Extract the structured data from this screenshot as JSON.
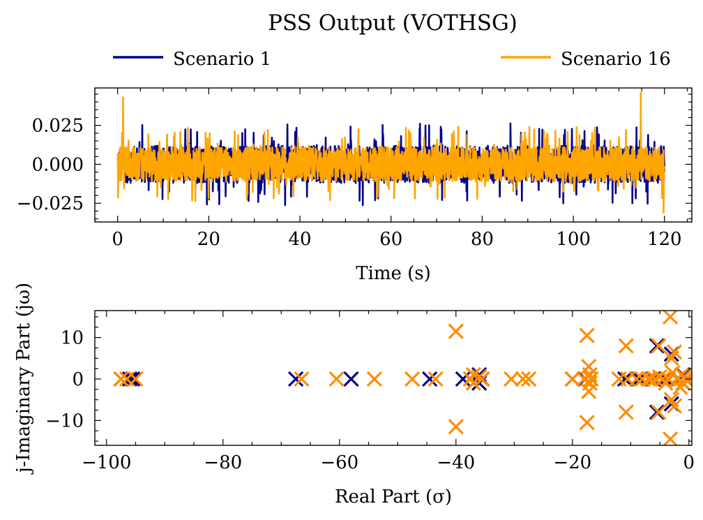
{
  "figure": {
    "title": "PSS Output (VOTHSG)",
    "legend": [
      {
        "label": "Scenario 1",
        "color": "#00008b"
      },
      {
        "label": "Scenario 16",
        "color": "#ffa500"
      }
    ]
  },
  "chart_data": [
    {
      "type": "line",
      "xlabel": "Time (s)",
      "ylabel": "",
      "xlim": [
        -5,
        126
      ],
      "ylim": [
        -0.037,
        0.049
      ],
      "xticks": [
        0,
        20,
        40,
        60,
        80,
        100,
        120
      ],
      "xtick_labels": [
        "0",
        "20",
        "40",
        "60",
        "80",
        "100",
        "120"
      ],
      "yticks": [
        -0.025,
        0.0,
        0.025
      ],
      "ytick_labels": [
        "−0.025",
        "0.000",
        "0.025"
      ],
      "x_range": [
        0,
        120
      ],
      "series": [
        {
          "name": "Scenario 1",
          "color": "#00008b",
          "typical_amplitude": 0.012,
          "peak": 0.029,
          "trough": -0.032
        },
        {
          "name": "Scenario 16",
          "color": "#ffa500",
          "typical_amplitude": 0.011,
          "peak": 0.046,
          "trough": -0.031,
          "spikes": [
            {
              "x": 1.2,
              "y": 0.043
            },
            {
              "x": 114.8,
              "y": 0.046
            },
            {
              "x": 119.8,
              "y": -0.031
            }
          ]
        }
      ],
      "grid": false
    },
    {
      "type": "scatter",
      "marker": "x",
      "xlabel": "Real Part (σ)",
      "ylabel": "j-Imaginary Part (jω)",
      "xlim": [
        -102,
        0.5
      ],
      "ylim": [
        -16,
        16.5
      ],
      "xticks": [
        -100,
        -80,
        -60,
        -40,
        -20,
        0
      ],
      "xtick_labels": [
        "−100",
        "−80",
        "−60",
        "−40",
        "−20",
        "0"
      ],
      "yticks": [
        -10,
        0,
        10
      ],
      "ytick_labels": [
        "−10",
        "0",
        "10"
      ],
      "series": [
        {
          "name": "Scenario 1",
          "color": "#00008b",
          "points": [
            [
              -97.5,
              0
            ],
            [
              -96,
              0
            ],
            [
              -95.5,
              0
            ],
            [
              -67.5,
              0
            ],
            [
              -58,
              0
            ],
            [
              -44.5,
              0
            ],
            [
              -38.8,
              0
            ],
            [
              -36,
              1
            ],
            [
              -36,
              -1
            ],
            [
              -35.5,
              0
            ],
            [
              -20,
              0
            ],
            [
              -17.8,
              0
            ],
            [
              -11,
              0
            ],
            [
              -8.5,
              0
            ],
            [
              -6,
              0
            ],
            [
              -5.5,
              8
            ],
            [
              -5.5,
              -8
            ],
            [
              -4,
              0
            ],
            [
              -3,
              6
            ],
            [
              -3,
              -6
            ],
            [
              -2,
              0
            ],
            [
              -1,
              1
            ],
            [
              -1,
              -1
            ],
            [
              -0.5,
              0
            ]
          ]
        },
        {
          "name": "Scenario 16",
          "color": "#ff8c00",
          "points": [
            [
              -97.5,
              0
            ],
            [
              -96.5,
              0
            ],
            [
              -95,
              0
            ],
            [
              -66.5,
              0
            ],
            [
              -60.5,
              0
            ],
            [
              -54,
              0
            ],
            [
              -47.5,
              0
            ],
            [
              -43.5,
              0
            ],
            [
              -40,
              11.5
            ],
            [
              -40,
              -11.5
            ],
            [
              -37.5,
              0
            ],
            [
              -37,
              1
            ],
            [
              -37,
              -1
            ],
            [
              -36,
              0.5
            ],
            [
              -35.5,
              0
            ],
            [
              -30.5,
              0
            ],
            [
              -28.5,
              0
            ],
            [
              -27.5,
              0
            ],
            [
              -20,
              0
            ],
            [
              -18,
              0
            ],
            [
              -17.5,
              10.5
            ],
            [
              -17.5,
              -10.5
            ],
            [
              -17.2,
              3
            ],
            [
              -17.2,
              -3
            ],
            [
              -17,
              1
            ],
            [
              -17,
              -1
            ],
            [
              -16.8,
              0
            ],
            [
              -12,
              0
            ],
            [
              -10.8,
              8
            ],
            [
              -10.8,
              -8
            ],
            [
              -10.5,
              0
            ],
            [
              -9,
              0
            ],
            [
              -8,
              0
            ],
            [
              -7,
              0
            ],
            [
              -6.5,
              0
            ],
            [
              -5.8,
              0
            ],
            [
              -5.2,
              8
            ],
            [
              -5.2,
              -8
            ],
            [
              -5,
              0.5
            ],
            [
              -4.5,
              0
            ],
            [
              -4,
              -1
            ],
            [
              -3.5,
              0
            ],
            [
              -3.2,
              15
            ],
            [
              -3.2,
              -14.5
            ],
            [
              -3,
              5
            ],
            [
              -3,
              -5
            ],
            [
              -2.8,
              1.5
            ],
            [
              -2.5,
              6.5
            ],
            [
              -2.5,
              -6.5
            ],
            [
              -2,
              0
            ],
            [
              -1.5,
              -2
            ],
            [
              -1.2,
              1
            ],
            [
              -1,
              -1
            ],
            [
              -0.8,
              0.5
            ],
            [
              -0.5,
              0
            ],
            [
              -0.3,
              -0.5
            ]
          ]
        }
      ],
      "grid": false
    }
  ]
}
